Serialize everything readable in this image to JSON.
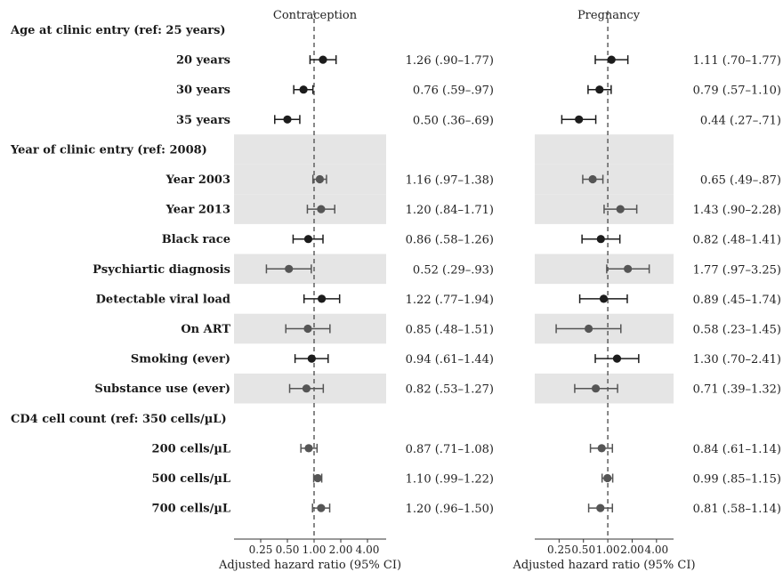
{
  "chart_data": {
    "type": "forest",
    "xscale": "log2",
    "xlim": [
      0.125,
      6.5
    ],
    "xticks": [
      "0.25",
      "0.50",
      "1.00",
      "2.00",
      "4.00"
    ],
    "reference_line": 1.0,
    "rows": [
      {
        "label": "Age at clinic entry (ref: 25 years)",
        "kind": "header",
        "shade": false
      },
      {
        "label": "20 years",
        "kind": "item",
        "shade": false,
        "color": "#1c1c1c"
      },
      {
        "label": "30 years",
        "kind": "item",
        "shade": false,
        "color": "#1c1c1c"
      },
      {
        "label": "35 years",
        "kind": "item",
        "shade": false,
        "color": "#1c1c1c"
      },
      {
        "label": "Year of clinic entry (ref: 2008)",
        "kind": "header",
        "shade": true
      },
      {
        "label": "Year 2003",
        "kind": "item",
        "shade": true,
        "color": "#555555"
      },
      {
        "label": "Year 2013",
        "kind": "item",
        "shade": true,
        "color": "#555555"
      },
      {
        "label": "Black race",
        "kind": "item",
        "shade": false,
        "color": "#1c1c1c"
      },
      {
        "label": "Psychiartic diagnosis",
        "kind": "item",
        "shade": true,
        "color": "#555555"
      },
      {
        "label": "Detectable viral load",
        "kind": "item",
        "shade": false,
        "color": "#1c1c1c"
      },
      {
        "label": "On ART",
        "kind": "item",
        "shade": true,
        "color": "#555555"
      },
      {
        "label": "Smoking (ever)",
        "kind": "item",
        "shade": false,
        "color": "#1c1c1c"
      },
      {
        "label": "Substance use (ever)",
        "kind": "item",
        "shade": true,
        "color": "#555555"
      },
      {
        "label": "CD4 cell count (ref: 350 cells/µL)",
        "kind": "header",
        "shade": false
      },
      {
        "label": "200 cells/µL",
        "kind": "item",
        "shade": false,
        "color": "#555555"
      },
      {
        "label": "500 cells/µL",
        "kind": "item",
        "shade": false,
        "color": "#555555"
      },
      {
        "label": "700 cells/µL",
        "kind": "item",
        "shade": false,
        "color": "#555555"
      }
    ],
    "panels": [
      {
        "title": "Contraception",
        "xlabel": "Adjusted hazard ratio (95% CI)",
        "estimates": [
          null,
          {
            "hr": 1.26,
            "lo": 0.9,
            "hi": 1.77,
            "text": "1.26 (.90–1.77)"
          },
          {
            "hr": 0.76,
            "lo": 0.59,
            "hi": 0.97,
            "text": "0.76 (.59–.97)"
          },
          {
            "hr": 0.5,
            "lo": 0.36,
            "hi": 0.69,
            "text": "0.50 (.36–.69)"
          },
          null,
          {
            "hr": 1.16,
            "lo": 0.97,
            "hi": 1.38,
            "text": "1.16 (.97–1.38)"
          },
          {
            "hr": 1.2,
            "lo": 0.84,
            "hi": 1.71,
            "text": "1.20 (.84–1.71)"
          },
          {
            "hr": 0.86,
            "lo": 0.58,
            "hi": 1.26,
            "text": "0.86 (.58–1.26)"
          },
          {
            "hr": 0.52,
            "lo": 0.29,
            "hi": 0.93,
            "text": "0.52 (.29–.93)"
          },
          {
            "hr": 1.22,
            "lo": 0.77,
            "hi": 1.94,
            "text": "1.22 (.77–1.94)"
          },
          {
            "hr": 0.85,
            "lo": 0.48,
            "hi": 1.51,
            "text": "0.85 (.48–1.51)"
          },
          {
            "hr": 0.94,
            "lo": 0.61,
            "hi": 1.44,
            "text": "0.94 (.61–1.44)"
          },
          {
            "hr": 0.82,
            "lo": 0.53,
            "hi": 1.27,
            "text": "0.82 (.53–1.27)"
          },
          null,
          {
            "hr": 0.87,
            "lo": 0.71,
            "hi": 1.08,
            "text": "0.87 (.71–1.08)"
          },
          {
            "hr": 1.1,
            "lo": 0.99,
            "hi": 1.22,
            "text": "1.10 (.99–1.22)"
          },
          {
            "hr": 1.2,
            "lo": 0.96,
            "hi": 1.5,
            "text": "1.20 (.96–1.50)"
          }
        ]
      },
      {
        "title": "Pregnancy",
        "xlabel": "Adjusted hazard ratio (95% CI)",
        "estimates": [
          null,
          {
            "hr": 1.11,
            "lo": 0.7,
            "hi": 1.77,
            "text": "1.11 (.70–1.77)"
          },
          {
            "hr": 0.79,
            "lo": 0.57,
            "hi": 1.1,
            "text": "0.79 (.57–1.10)"
          },
          {
            "hr": 0.44,
            "lo": 0.27,
            "hi": 0.71,
            "text": "0.44 (.27–.71)"
          },
          null,
          {
            "hr": 0.65,
            "lo": 0.49,
            "hi": 0.87,
            "text": "0.65 (.49–.87)"
          },
          {
            "hr": 1.43,
            "lo": 0.9,
            "hi": 2.28,
            "text": "1.43 (.90–2.28)"
          },
          {
            "hr": 0.82,
            "lo": 0.48,
            "hi": 1.41,
            "text": "0.82 (.48–1.41)"
          },
          {
            "hr": 1.77,
            "lo": 0.97,
            "hi": 3.25,
            "text": "1.77 (.97–3.25)"
          },
          {
            "hr": 0.89,
            "lo": 0.45,
            "hi": 1.74,
            "text": "0.89 (.45–1.74)"
          },
          {
            "hr": 0.58,
            "lo": 0.23,
            "hi": 1.45,
            "text": "0.58 (.23–1.45)"
          },
          {
            "hr": 1.3,
            "lo": 0.7,
            "hi": 2.41,
            "text": "1.30 (.70–2.41)"
          },
          {
            "hr": 0.71,
            "lo": 0.39,
            "hi": 1.32,
            "text": "0.71 (.39–1.32)"
          },
          null,
          {
            "hr": 0.84,
            "lo": 0.61,
            "hi": 1.14,
            "text": "0.84 (.61–1.14)"
          },
          {
            "hr": 0.99,
            "lo": 0.85,
            "hi": 1.15,
            "text": "0.99 (.85–1.15)"
          },
          {
            "hr": 0.81,
            "lo": 0.58,
            "hi": 1.14,
            "text": "0.81 (.58–1.14)"
          }
        ]
      }
    ],
    "colors": {
      "shade": "#e5e5e5",
      "refline": "#555555",
      "axis": "#333333"
    }
  }
}
